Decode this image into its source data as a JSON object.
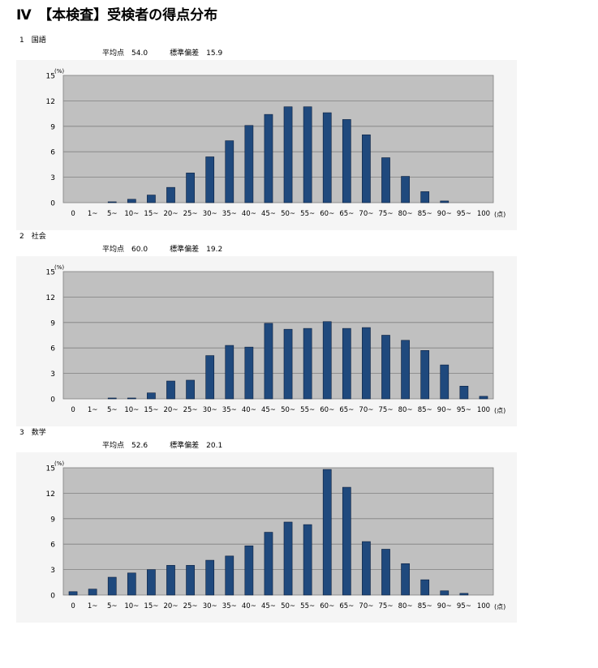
{
  "page": {
    "title": "Ⅳ　【本検査】受検者の得点分布"
  },
  "sections": [
    {
      "label": "1　国語",
      "mean_label": "平均点",
      "mean": "54.0",
      "sd_label": "標準偏差",
      "sd": "15.9"
    },
    {
      "label": "2　社会",
      "mean_label": "平均点",
      "mean": "60.0",
      "sd_label": "標準偏差",
      "sd": "19.2"
    },
    {
      "label": "3　数学",
      "mean_label": "平均点",
      "mean": "52.6",
      "sd_label": "標準偏差",
      "sd": "20.1"
    }
  ],
  "colors": {
    "bar_fill": "#1f497d",
    "bar_stroke": "#0b1f3f",
    "plot_background": "#c0c0c0",
    "outer_background": "#f5f5f5",
    "gridline": "#808080"
  },
  "chart_data": [
    {
      "type": "bar",
      "title": "",
      "xlabel": "",
      "x_unit": "(点)",
      "y_unit": "(%)",
      "ylim": [
        0,
        15
      ],
      "yticks": [
        0,
        3,
        6,
        9,
        12,
        15
      ],
      "grid": true,
      "categories": [
        "0",
        "1~",
        "5~",
        "10~",
        "15~",
        "20~",
        "25~",
        "30~",
        "35~",
        "40~",
        "45~",
        "50~",
        "55~",
        "60~",
        "65~",
        "70~",
        "75~",
        "80~",
        "85~",
        "90~",
        "95~",
        "100"
      ],
      "values": [
        0,
        0,
        0.1,
        0.4,
        0.9,
        1.8,
        3.5,
        5.4,
        7.3,
        9.1,
        10.4,
        11.3,
        11.3,
        10.6,
        9.8,
        8.0,
        5.3,
        3.1,
        1.3,
        0.2,
        0,
        0
      ]
    },
    {
      "type": "bar",
      "title": "",
      "xlabel": "",
      "x_unit": "(点)",
      "y_unit": "(%)",
      "ylim": [
        0,
        15
      ],
      "yticks": [
        0,
        3,
        6,
        9,
        12,
        15
      ],
      "grid": true,
      "categories": [
        "0",
        "1~",
        "5~",
        "10~",
        "15~",
        "20~",
        "25~",
        "30~",
        "35~",
        "40~",
        "45~",
        "50~",
        "55~",
        "60~",
        "65~",
        "70~",
        "75~",
        "80~",
        "85~",
        "90~",
        "95~",
        "100"
      ],
      "values": [
        0,
        0,
        0.1,
        0.1,
        0.7,
        2.1,
        2.2,
        5.1,
        6.3,
        6.1,
        8.9,
        8.2,
        8.3,
        9.1,
        8.3,
        8.4,
        7.5,
        6.9,
        5.7,
        4.0,
        1.5,
        0.3
      ]
    },
    {
      "type": "bar",
      "title": "",
      "xlabel": "",
      "x_unit": "(点)",
      "y_unit": "(%)",
      "ylim": [
        0,
        15
      ],
      "yticks": [
        0,
        3,
        6,
        9,
        12,
        15
      ],
      "grid": true,
      "categories": [
        "0",
        "1~",
        "5~",
        "10~",
        "15~",
        "20~",
        "25~",
        "30~",
        "35~",
        "40~",
        "45~",
        "50~",
        "55~",
        "60~",
        "65~",
        "70~",
        "75~",
        "80~",
        "85~",
        "90~",
        "95~",
        "100"
      ],
      "values": [
        0.4,
        0.7,
        2.1,
        2.6,
        3.0,
        3.5,
        3.5,
        4.1,
        4.6,
        5.8,
        7.4,
        8.6,
        8.3,
        14.8,
        12.7,
        6.3,
        5.4,
        3.7,
        1.8,
        0.5,
        0.2,
        0
      ]
    }
  ]
}
